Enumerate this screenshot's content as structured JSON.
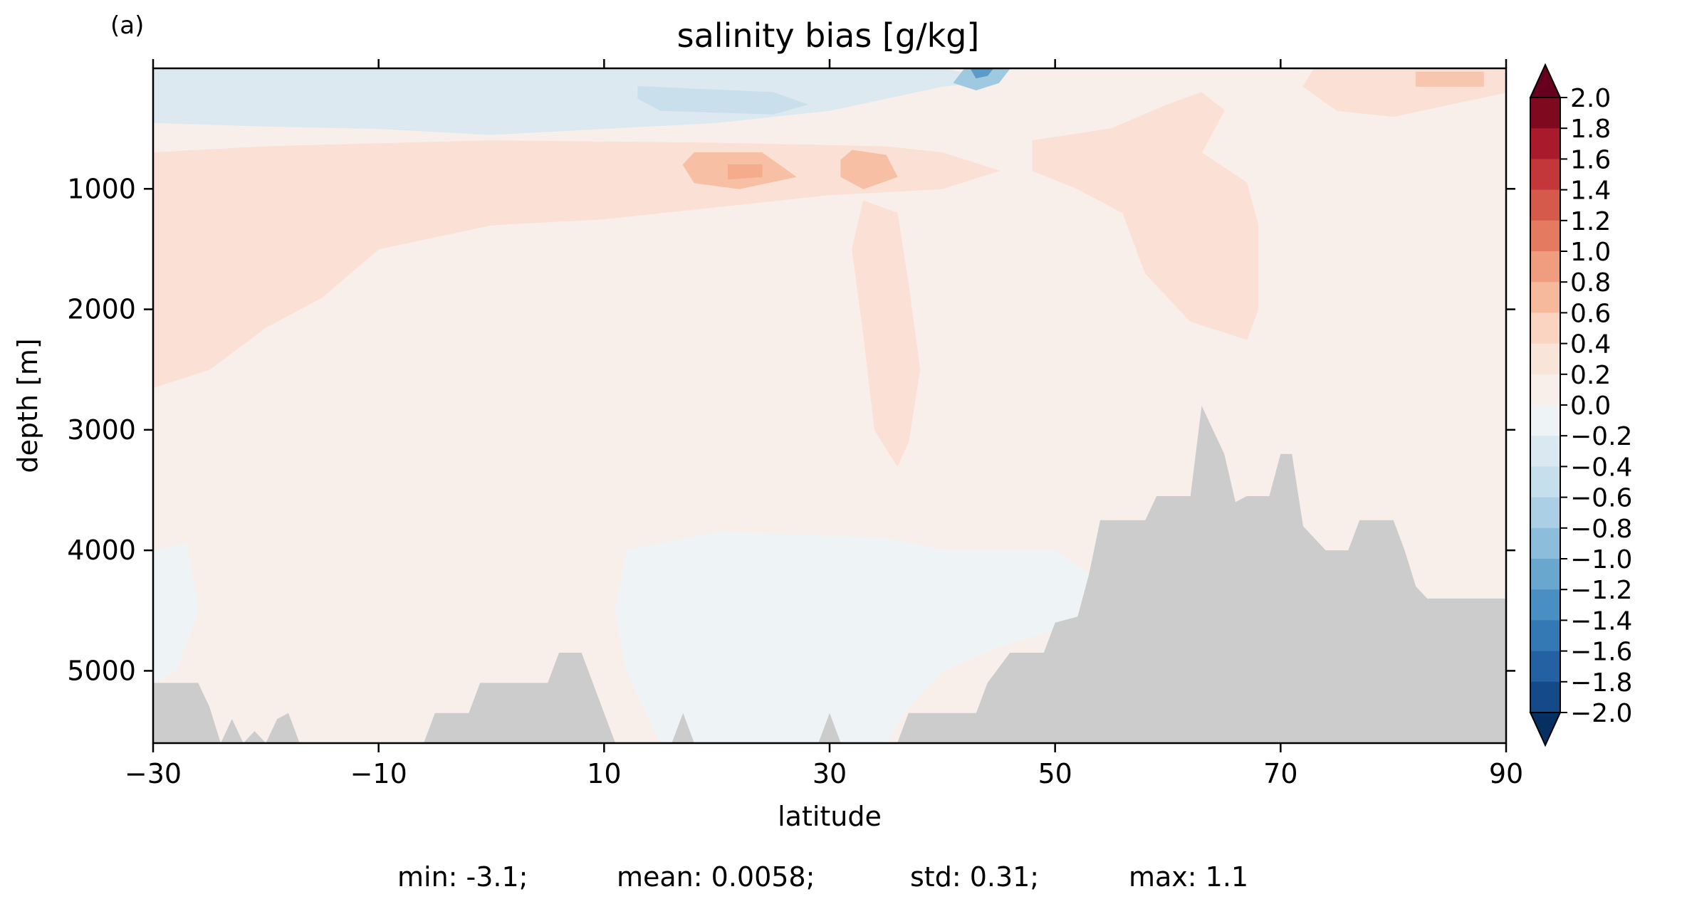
{
  "panel_label": "(a)",
  "stats": {
    "min": "min: -3.1;",
    "mean": "mean: 0.0058;",
    "std": "std: 0.31;",
    "max": "max: 1.1"
  },
  "colors": {
    "topography": "#cccccc",
    "background_positive_small": "#f8efeb",
    "background_negative_small": "#eef3f6"
  },
  "chart_data": {
    "type": "heatmap",
    "title": "salinity bias [g/kg]",
    "xlabel": "latitude",
    "ylabel": "depth [m]",
    "xlim": [
      -30,
      90
    ],
    "ylim": [
      5600,
      0
    ],
    "x_ticks": [
      -30,
      -10,
      10,
      30,
      50,
      70,
      90
    ],
    "x_tick_labels": [
      "−30",
      "−10",
      "10",
      "30",
      "50",
      "70",
      "90"
    ],
    "y_ticks": [
      1000,
      2000,
      3000,
      4000,
      5000
    ],
    "y_tick_labels": [
      "1000",
      "2000",
      "3000",
      "4000",
      "5000"
    ],
    "colorbar": {
      "levels": [
        2.0,
        1.8,
        1.6,
        1.4,
        1.2,
        1.0,
        0.8,
        0.6,
        0.4,
        0.2,
        0.0,
        -0.2,
        -0.4,
        -0.6,
        -0.8,
        -1.0,
        -1.2,
        -1.4,
        -1.6,
        -1.8,
        -2.0
      ],
      "labels": [
        "2.0",
        "1.8",
        "1.6",
        "1.4",
        "1.2",
        "1.0",
        "0.8",
        "0.6",
        "0.4",
        "0.2",
        "0.0",
        "−0.2",
        "−0.4",
        "−0.6",
        "−0.8",
        "−1.0",
        "−1.2",
        "−1.4",
        "−1.6",
        "−1.8",
        "−2.0"
      ],
      "colors": [
        "#7f0a1f",
        "#a91a2c",
        "#c3373b",
        "#d55a4b",
        "#e47a60",
        "#f09c7e",
        "#f7b99c",
        "#fbd3c1",
        "#f9e4da",
        "#f8efeb",
        "#eef3f6",
        "#dae9f1",
        "#c6dfec",
        "#abd0e5",
        "#8cbddb",
        "#6aa7ce",
        "#4a8fc1",
        "#3478b4",
        "#2361a3",
        "#134a87"
      ],
      "extend": "both",
      "over_color": "#67001f",
      "under_color": "#053061"
    },
    "regions": [
      {
        "name": "upper-positive-band",
        "value": 0.3,
        "color": "#fbe1d5",
        "points": [
          [
            -30,
            700
          ],
          [
            -20,
            650
          ],
          [
            0,
            600
          ],
          [
            20,
            620
          ],
          [
            35,
            650
          ],
          [
            40,
            700
          ],
          [
            45,
            850
          ],
          [
            40,
            1000
          ],
          [
            30,
            1050
          ],
          [
            20,
            1150
          ],
          [
            10,
            1250
          ],
          [
            0,
            1300
          ],
          [
            -10,
            1500
          ],
          [
            -15,
            1900
          ],
          [
            -20,
            2150
          ],
          [
            -25,
            2500
          ],
          [
            -30,
            2650
          ]
        ]
      },
      {
        "name": "north-positive-tongue",
        "value": 0.3,
        "color": "#fbe1d5",
        "points": [
          [
            48,
            600
          ],
          [
            55,
            500
          ],
          [
            60,
            300
          ],
          [
            63,
            200
          ],
          [
            65,
            350
          ],
          [
            63,
            700
          ],
          [
            67,
            950
          ],
          [
            68,
            1300
          ],
          [
            68,
            2000
          ],
          [
            67,
            2250
          ],
          [
            62,
            2100
          ],
          [
            58,
            1700
          ],
          [
            56,
            1200
          ],
          [
            52,
            1000
          ],
          [
            48,
            850
          ]
        ]
      },
      {
        "name": "deep-positive-tongue",
        "value": 0.3,
        "color": "#fbe1d5",
        "points": [
          [
            33,
            1100
          ],
          [
            36,
            1200
          ],
          [
            37,
            1800
          ],
          [
            38,
            2500
          ],
          [
            37,
            3100
          ],
          [
            36,
            3300
          ],
          [
            34,
            3000
          ],
          [
            33,
            2200
          ],
          [
            32,
            1500
          ]
        ]
      },
      {
        "name": "north-surface-positive",
        "value": 0.3,
        "color": "#fbe1d5",
        "points": [
          [
            73,
            0
          ],
          [
            90,
            0
          ],
          [
            90,
            200
          ],
          [
            85,
            300
          ],
          [
            80,
            400
          ],
          [
            75,
            350
          ],
          [
            72,
            150
          ]
        ]
      },
      {
        "name": "north-atlantic-surface-patch",
        "value": 0.5,
        "color": "#f7c6ad",
        "points": [
          [
            82,
            30
          ],
          [
            88,
            30
          ],
          [
            88,
            150
          ],
          [
            82,
            150
          ]
        ]
      },
      {
        "name": "mid-depth-patch-1",
        "value": 0.6,
        "color": "#f7c0a4",
        "points": [
          [
            18,
            700
          ],
          [
            24,
            700
          ],
          [
            27,
            900
          ],
          [
            22,
            1000
          ],
          [
            18,
            950
          ],
          [
            17,
            800
          ]
        ]
      },
      {
        "name": "mid-depth-patch-2",
        "value": 0.6,
        "color": "#f7c0a4",
        "points": [
          [
            32,
            680
          ],
          [
            35,
            720
          ],
          [
            36,
            900
          ],
          [
            33,
            1000
          ],
          [
            31,
            900
          ],
          [
            31,
            760
          ]
        ]
      },
      {
        "name": "mid-depth-core",
        "value": 0.8,
        "color": "#f4ac8d",
        "points": [
          [
            21,
            800
          ],
          [
            24,
            800
          ],
          [
            24,
            900
          ],
          [
            21,
            920
          ]
        ]
      },
      {
        "name": "surface-negative-south",
        "value": -0.2,
        "color": "#dce9f1",
        "points": [
          [
            -30,
            0
          ],
          [
            10,
            0
          ],
          [
            30,
            0
          ],
          [
            40,
            0
          ],
          [
            45,
            100
          ],
          [
            40,
            150
          ],
          [
            30,
            350
          ],
          [
            20,
            450
          ],
          [
            10,
            500
          ],
          [
            0,
            550
          ],
          [
            -10,
            500
          ],
          [
            -20,
            480
          ],
          [
            -30,
            450
          ]
        ]
      },
      {
        "name": "surface-negative-core",
        "value": -0.4,
        "color": "#c9e0ec",
        "points": [
          [
            13,
            150
          ],
          [
            25,
            200
          ],
          [
            28,
            300
          ],
          [
            25,
            380
          ],
          [
            15,
            350
          ],
          [
            13,
            250
          ]
        ]
      },
      {
        "name": "subpolar-surface-negative",
        "value": -0.8,
        "color": "#9ec9e0",
        "points": [
          [
            42,
            0
          ],
          [
            46,
            0
          ],
          [
            45,
            120
          ],
          [
            43,
            180
          ],
          [
            41,
            120
          ]
        ]
      },
      {
        "name": "subpolar-surface-core",
        "value": -1.2,
        "color": "#5a9bc8",
        "points": [
          [
            42.5,
            0
          ],
          [
            44.5,
            0
          ],
          [
            44,
            60
          ],
          [
            43,
            80
          ]
        ]
      },
      {
        "name": "deep-negative-region",
        "value": -0.1,
        "color": "#eef3f6",
        "points": [
          [
            12,
            4000
          ],
          [
            20,
            3850
          ],
          [
            35,
            3900
          ],
          [
            40,
            4000
          ],
          [
            50,
            4000
          ],
          [
            53,
            4200
          ],
          [
            52,
            4600
          ],
          [
            45,
            4800
          ],
          [
            40,
            5000
          ],
          [
            37,
            5300
          ],
          [
            35,
            5600
          ],
          [
            15,
            5600
          ],
          [
            12,
            5000
          ],
          [
            11,
            4500
          ]
        ]
      },
      {
        "name": "south-deep-negative",
        "value": -0.1,
        "color": "#eef3f6",
        "points": [
          [
            -30,
            4000
          ],
          [
            -27,
            3950
          ],
          [
            -26,
            4500
          ],
          [
            -28,
            5000
          ],
          [
            -30,
            5100
          ]
        ]
      }
    ],
    "topography": {
      "color": "#cccccc",
      "points": [
        [
          -30,
          5100
        ],
        [
          -26,
          5100
        ],
        [
          -25,
          5300
        ],
        [
          -24,
          5600
        ],
        [
          -23,
          5400
        ],
        [
          -22,
          5600
        ],
        [
          -21,
          5500
        ],
        [
          -20,
          5600
        ],
        [
          -19,
          5400
        ],
        [
          -18,
          5350
        ],
        [
          -17,
          5600
        ],
        [
          -6,
          5600
        ],
        [
          -5,
          5350
        ],
        [
          -2,
          5350
        ],
        [
          -1,
          5100
        ],
        [
          5,
          5100
        ],
        [
          6,
          4850
        ],
        [
          8,
          4850
        ],
        [
          9,
          5100
        ],
        [
          10,
          5350
        ],
        [
          11,
          5600
        ],
        [
          16,
          5600
        ],
        [
          17,
          5350
        ],
        [
          18,
          5600
        ],
        [
          29,
          5600
        ],
        [
          30,
          5350
        ],
        [
          31,
          5600
        ],
        [
          36,
          5600
        ],
        [
          37,
          5350
        ],
        [
          43,
          5350
        ],
        [
          44,
          5100
        ],
        [
          46,
          4850
        ],
        [
          49,
          4850
        ],
        [
          50,
          4600
        ],
        [
          52,
          4550
        ],
        [
          53,
          4200
        ],
        [
          54,
          3750
        ],
        [
          58,
          3750
        ],
        [
          59,
          3550
        ],
        [
          62,
          3550
        ],
        [
          63,
          2800
        ],
        [
          64,
          3000
        ],
        [
          65,
          3200
        ],
        [
          66,
          3600
        ],
        [
          67,
          3550
        ],
        [
          69,
          3550
        ],
        [
          70,
          3200
        ],
        [
          71,
          3200
        ],
        [
          72,
          3800
        ],
        [
          74,
          4000
        ],
        [
          76,
          4000
        ],
        [
          77,
          3750
        ],
        [
          80,
          3750
        ],
        [
          81,
          4000
        ],
        [
          82,
          4300
        ],
        [
          83,
          4400
        ],
        [
          90,
          4400
        ],
        [
          90,
          5600
        ],
        [
          -30,
          5600
        ]
      ]
    }
  }
}
